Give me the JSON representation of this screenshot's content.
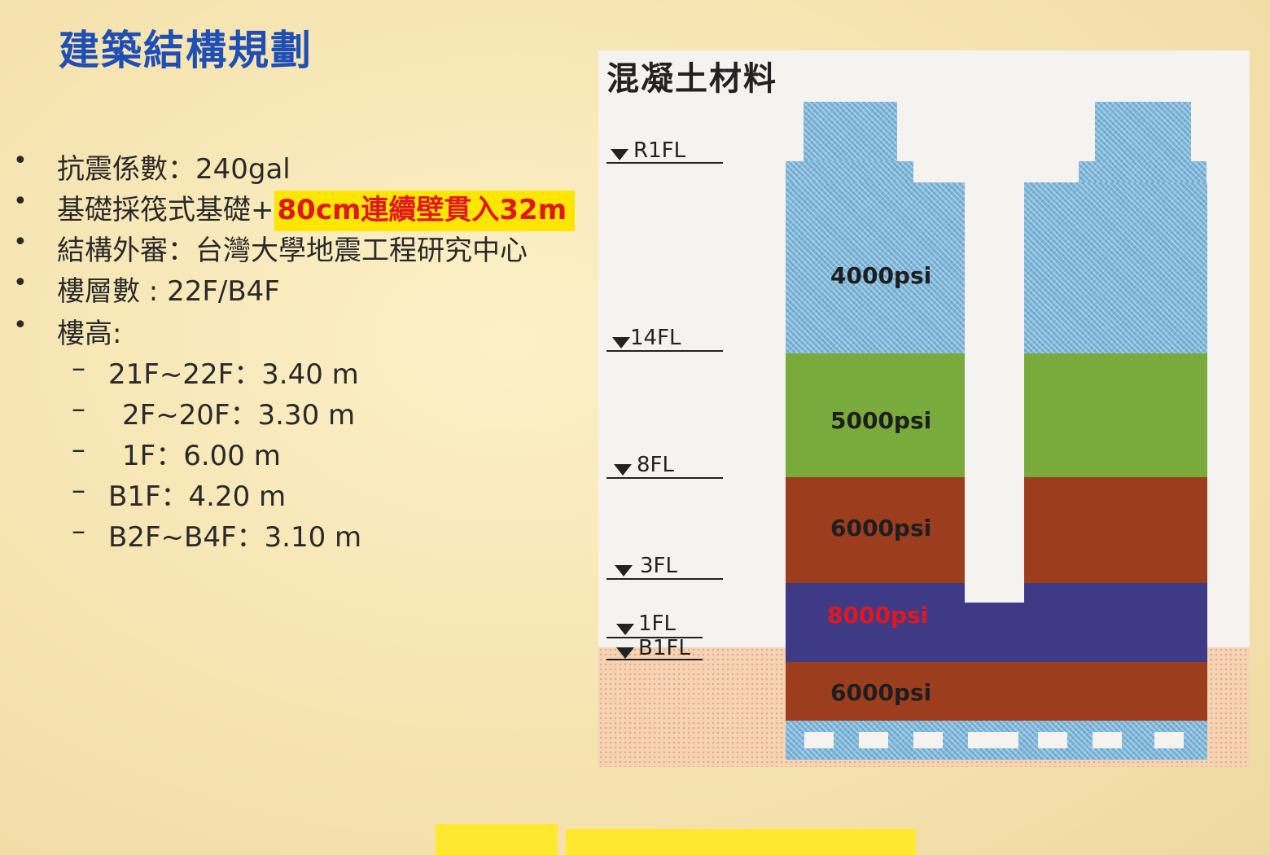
{
  "slide_title": "建築結構規劃",
  "bullets": [
    {
      "text": "抗震係數：240gal"
    },
    {
      "text": "基礎採筏式基礎+",
      "highlight": "80cm連續壁貫入32m"
    },
    {
      "text": "結構外審：台灣大學地震工程研究中心"
    },
    {
      "text": "樓層數 : 22F/B4F"
    },
    {
      "text": "樓高:"
    }
  ],
  "floor_heights": [
    {
      "text": "21F~22F：3.40 m"
    },
    {
      "text": " 2F~20F：3.30 m"
    },
    {
      "text": " 1F：6.00 m"
    },
    {
      "text": "B1F：4.20 m"
    },
    {
      "text": "B2F~B4F：3.10 m"
    }
  ],
  "diagram": {
    "title": "混凝土材料",
    "levels": [
      "R1FL",
      "14FL",
      "8FL",
      "3FL",
      "1FL",
      "B1FL"
    ],
    "zones": [
      {
        "label": "4000psi",
        "color": "#7ab4d8"
      },
      {
        "label": "5000psi",
        "color": "#79aa3c"
      },
      {
        "label": "6000psi",
        "color": "#9c3e1d"
      },
      {
        "label": "8000psi",
        "color": "#3f3a86",
        "label_color": "#e0181e"
      },
      {
        "label": "6000psi",
        "color": "#9c3e1d"
      }
    ],
    "foundation_color": "#7ab4d8"
  },
  "colors": {
    "title_blue": "#1f4fb5",
    "highlight_yellow": "#ffe600",
    "highlight_red": "#e0181e",
    "background": "#f6e4b0"
  }
}
